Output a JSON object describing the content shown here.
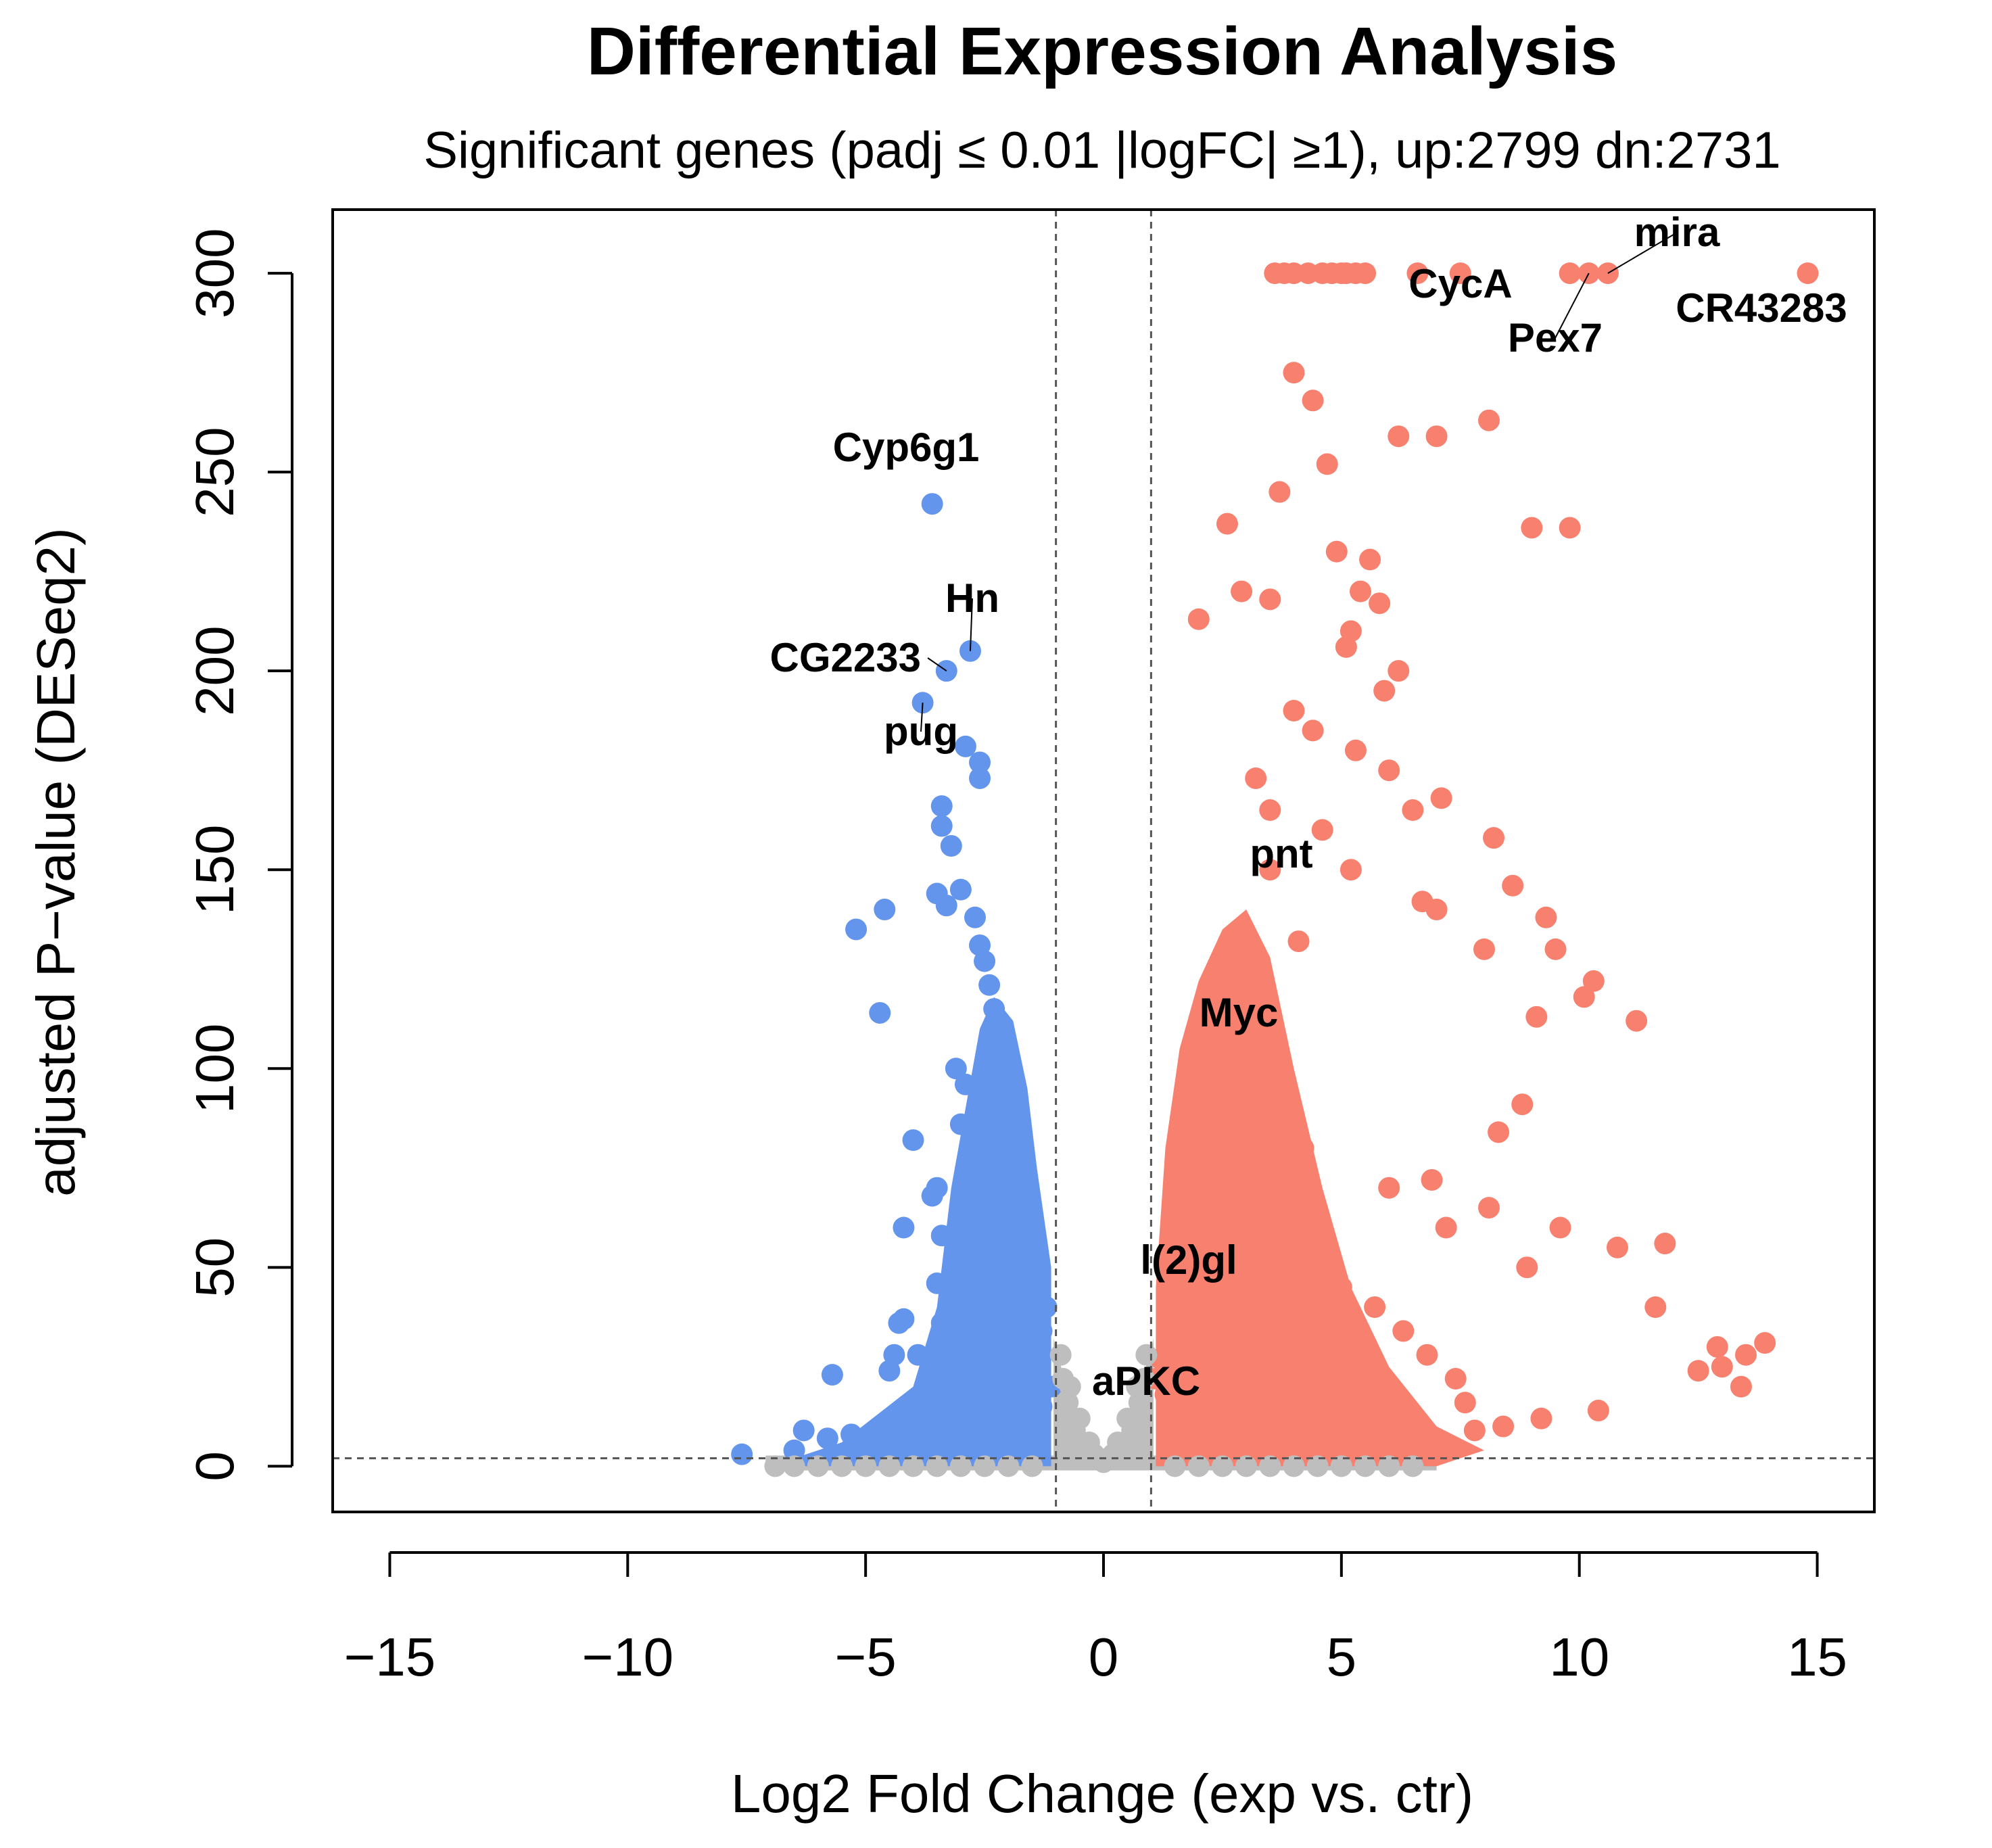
{
  "chart_data": {
    "type": "scatter",
    "title": "Differential Expression Analysis",
    "subtitle": "Significant genes (padj ≤ 0.01 |logFC| ≥1), up:2799 dn:2731",
    "xlabel": "Log2 Fold Change (exp vs. ctr)",
    "ylabel": "adjusted P−value (DESeq2)",
    "xlim": [
      -16.2,
      16.2
    ],
    "ylim": [
      -11.5,
      316
    ],
    "xticks": [
      -15,
      -10,
      -5,
      0,
      5,
      10,
      15
    ],
    "xtick_labels": [
      "−15",
      "−10",
      "−5",
      "0",
      "5",
      "10",
      "15"
    ],
    "yticks": [
      0,
      50,
      100,
      150,
      200,
      250,
      300
    ],
    "ytick_labels": [
      "0",
      "50",
      "100",
      "150",
      "200",
      "250",
      "300"
    ],
    "thresholds": {
      "logfc": [
        -1,
        1
      ],
      "padj_line": 2
    },
    "colors": {
      "up": "#f8806f",
      "down": "#6495ed",
      "ns": "#bebebe"
    },
    "series": [
      {
        "name": "down",
        "x": [
          -3.6,
          -2.8,
          -3.3,
          -3.8,
          -2.9,
          -2.6,
          -2.6,
          -3.4,
          -3.4,
          -3.2,
          -3.0,
          -3.5,
          -3.3,
          -2.7,
          -2.6,
          -2.5,
          -2.4,
          -2.3,
          -2.2,
          -2.1,
          -2.4,
          -3.1,
          -5.2,
          -4.6,
          -4.7,
          -4.0,
          -2.9,
          -2.2,
          -2.0,
          -3.0,
          -2.5,
          -1.8,
          -1.9,
          -3.5,
          -3.6,
          -2.0,
          -4.2,
          -3.4,
          -1.5,
          -2.2,
          -3.5,
          -1.7,
          -1.2,
          -3.2,
          -3.4,
          -1.3,
          -2.0,
          -4.2,
          -4.3,
          -4.4,
          -3.9,
          -1.1,
          -1.3,
          -5.7,
          -4.5,
          -3.8,
          -2.8,
          -3.3,
          -7.6,
          -6.5,
          -5.8,
          -6.3,
          -5.3,
          -4.1,
          -3.0,
          -1.5,
          -2.5,
          -2.8,
          -2.1,
          -1.6
        ],
        "y": [
          242,
          205,
          200,
          192,
          181,
          177,
          173,
          166,
          161,
          156,
          145,
          144,
          141,
          138,
          131,
          127,
          121,
          115,
          110,
          104,
          101,
          100,
          135,
          140,
          114,
          82,
          96,
          93,
          90,
          86,
          80,
          77,
          72,
          70,
          68,
          66,
          60,
          58,
          55,
          52,
          46,
          44,
          40,
          38,
          36,
          34,
          32,
          37,
          36,
          28,
          28,
          20,
          15,
          23,
          24,
          15,
          20,
          17,
          3,
          4,
          7,
          9,
          8,
          12,
          6,
          10,
          12,
          5,
          8,
          4
        ]
      },
      {
        "name": "up",
        "x": [
          14.8,
          10.6,
          10.2,
          5.3,
          5.1,
          5.0,
          4.8,
          4.6,
          4.3,
          4.0,
          3.8,
          3.6,
          5.5,
          6.6,
          7.5,
          9.8,
          8.1,
          6.2,
          7.0,
          4.0,
          4.4,
          4.7,
          3.7,
          2.6,
          2.9,
          2.0,
          3.5,
          5.1,
          4.9,
          5.6,
          5.4,
          5.8,
          5.2,
          6.2,
          5.9,
          9.0,
          9.8,
          4.0,
          4.4,
          5.3,
          6.0,
          3.2,
          3.5,
          4.6,
          5.2,
          6.7,
          6.5,
          7.1,
          8.2,
          8.6,
          7.0,
          8.0,
          9.3,
          9.1,
          10.3,
          11.2,
          11.8,
          12.5,
          13.0,
          13.5,
          13.9,
          9.5,
          10.1,
          8.8,
          8.3,
          3.0,
          3.5,
          4.1,
          2.8,
          3.3,
          2.5,
          2.2,
          4.2,
          6.0,
          7.2,
          8.9,
          11.6,
          12.9,
          13.4,
          10.4,
          9.2,
          8.4,
          7.8,
          7.6,
          7.4,
          6.8,
          6.3,
          5.7,
          5.0,
          4.5,
          3.9,
          3.4,
          3.1,
          2.7,
          2.4,
          2.1,
          1.9,
          1.6,
          1.4,
          1.2,
          1.1,
          1.3,
          1.5,
          1.8,
          2.0,
          2.3,
          2.6,
          2.9,
          3.2,
          3.6,
          4.0,
          3.8,
          3.3,
          2.7,
          2.2,
          1.8,
          1.5,
          6.9,
          8.1,
          9.6,
          10.8
        ],
        "y": [
          300,
          300,
          300,
          300,
          300,
          300,
          300,
          300,
          300,
          300,
          300,
          300,
          300,
          300,
          300,
          300,
          263,
          259,
          259,
          275,
          268,
          252,
          245,
          237,
          220,
          213,
          218,
          206,
          230,
          228,
          220,
          217,
          210,
          200,
          195,
          236,
          236,
          190,
          185,
          180,
          175,
          173,
          165,
          160,
          150,
          142,
          165,
          168,
          158,
          146,
          140,
          130,
          138,
          113,
          122,
          112,
          56,
          24,
          25,
          28,
          31,
          130,
          118,
          91,
          84,
          128,
          150,
          132,
          120,
          110,
          100,
          90,
          80,
          70,
          60,
          50,
          40,
          30,
          20,
          14,
          12,
          10,
          9,
          16,
          22,
          28,
          34,
          40,
          45,
          50,
          55,
          60,
          63,
          58,
          48,
          42,
          38,
          35,
          30,
          27,
          22,
          18,
          14,
          11,
          8,
          7,
          9,
          12,
          15,
          18,
          22,
          70,
          80,
          85,
          75,
          60,
          45,
          72,
          65,
          60,
          55
        ]
      },
      {
        "name": "ns",
        "x": [
          -0.9,
          -0.7,
          -0.5,
          -0.3,
          -0.1,
          0.1,
          0.3,
          0.5,
          0.7,
          0.9,
          -0.8,
          -0.6,
          -0.4,
          -0.2,
          0.0,
          0.2,
          0.4,
          0.6,
          0.8,
          -6.9,
          -6.5,
          -6.0,
          -5.5,
          -5.0,
          -4.5,
          -4.0,
          -3.5,
          -3.0,
          -2.5,
          -2.0,
          -1.5,
          1.5,
          2.0,
          2.5,
          3.0,
          3.5,
          4.0,
          4.5,
          5.0,
          5.5,
          6.0,
          6.5,
          -0.85,
          -0.75,
          0.75,
          0.85
        ],
        "y": [
          28,
          20,
          12,
          6,
          2,
          2,
          6,
          12,
          20,
          28,
          14,
          9,
          5,
          3,
          1,
          3,
          5,
          9,
          14,
          0,
          0,
          0,
          0,
          0,
          0,
          0,
          0,
          0,
          0,
          0,
          0,
          0,
          0,
          0,
          0,
          0,
          0,
          0,
          0,
          0,
          0,
          0,
          22,
          16,
          16,
          22
        ]
      }
    ],
    "annotations": [
      {
        "label": "Cyp6g1",
        "x": -3.6,
        "y": 242
      },
      {
        "label": "Hn",
        "x": -2.8,
        "y": 205
      },
      {
        "label": "CG2233",
        "x": -3.3,
        "y": 200
      },
      {
        "label": "pug",
        "x": -3.8,
        "y": 192
      },
      {
        "label": "mira",
        "x": 10.6,
        "y": 300
      },
      {
        "label": "CycA",
        "x": 5.3,
        "y": 300
      },
      {
        "label": "Pex7",
        "x": 10.2,
        "y": 300
      },
      {
        "label": "CR43283",
        "x": 14.8,
        "y": 300
      },
      {
        "label": "pnt",
        "x": 3.0,
        "y": 150
      },
      {
        "label": "Myc",
        "x": 2.8,
        "y": 110
      },
      {
        "label": "l(2)gl",
        "x": 1.8,
        "y": 50
      },
      {
        "label": "aPKC",
        "x": 0.8,
        "y": 22
      }
    ]
  }
}
